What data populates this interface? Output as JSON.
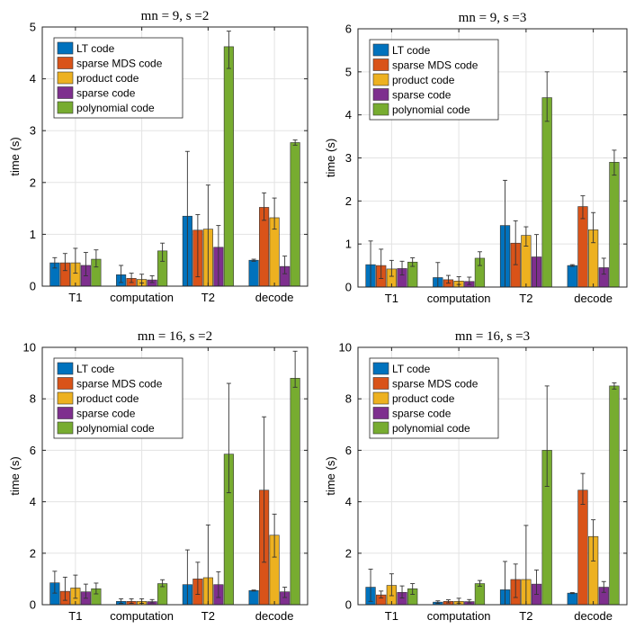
{
  "colors": {
    "LT code": "#0072BD",
    "sparse MDS code": "#D95319",
    "product code": "#EDB120",
    "sparse code": "#7E2F8E",
    "polynomial code": "#77AC30"
  },
  "chart_data": [
    {
      "type": "bar",
      "title": "mn = 9, s =2",
      "ylabel": "time (s)",
      "ylim": [
        0,
        5
      ],
      "yticks": [
        "0",
        "1",
        "2",
        "3",
        "4",
        "5"
      ],
      "grid": true,
      "legend_position": "top-left",
      "categories": [
        "T1",
        "computation",
        "T2",
        "decode"
      ],
      "series": [
        {
          "name": "LT code",
          "values": [
            0.45,
            0.22,
            1.35,
            0.5
          ],
          "err_low": [
            0.1,
            0.15,
            1.35,
            0.02
          ],
          "err_high": [
            0.1,
            0.18,
            1.25,
            0.02
          ]
        },
        {
          "name": "sparse MDS code",
          "values": [
            0.45,
            0.15,
            1.08,
            1.52
          ],
          "err_low": [
            0.15,
            0.08,
            0.9,
            0.25
          ],
          "err_high": [
            0.18,
            0.1,
            0.3,
            0.28
          ]
        },
        {
          "name": "product code",
          "values": [
            0.45,
            0.13,
            1.1,
            1.32
          ],
          "err_low": [
            0.2,
            0.07,
            1.1,
            0.22
          ],
          "err_high": [
            0.28,
            0.1,
            0.85,
            0.38
          ]
        },
        {
          "name": "sparse code",
          "values": [
            0.4,
            0.12,
            0.75,
            0.38
          ],
          "err_low": [
            0.2,
            0.05,
            0.75,
            0.14
          ],
          "err_high": [
            0.25,
            0.08,
            0.42,
            0.2
          ]
        },
        {
          "name": "polynomial code",
          "values": [
            0.52,
            0.68,
            4.62,
            2.77
          ],
          "err_low": [
            0.15,
            0.2,
            0.42,
            0.05
          ],
          "err_high": [
            0.18,
            0.15,
            0.3,
            0.05
          ]
        }
      ]
    },
    {
      "type": "bar",
      "title": "mn = 9, s =3",
      "ylabel": "time (s)",
      "ylim": [
        0,
        6
      ],
      "yticks": [
        "0",
        "1",
        "2",
        "3",
        "4",
        "5",
        "6"
      ],
      "grid": true,
      "legend_position": "top-left",
      "categories": [
        "T1",
        "computation",
        "T2",
        "decode"
      ],
      "series": [
        {
          "name": "LT code",
          "values": [
            0.52,
            0.22,
            1.43,
            0.5
          ],
          "err_low": [
            0.52,
            0.22,
            1.43,
            0.02
          ],
          "err_high": [
            0.55,
            0.35,
            1.05,
            0.02
          ]
        },
        {
          "name": "sparse MDS code",
          "values": [
            0.5,
            0.17,
            1.02,
            1.87
          ],
          "err_low": [
            0.3,
            0.08,
            0.5,
            0.28
          ],
          "err_high": [
            0.38,
            0.1,
            0.52,
            0.25
          ]
        },
        {
          "name": "product code",
          "values": [
            0.42,
            0.14,
            1.2,
            1.33
          ],
          "err_low": [
            0.17,
            0.08,
            0.25,
            0.3
          ],
          "err_high": [
            0.2,
            0.1,
            0.2,
            0.4
          ]
        },
        {
          "name": "sparse code",
          "values": [
            0.43,
            0.13,
            0.7,
            0.45
          ],
          "err_low": [
            0.15,
            0.07,
            0.7,
            0.15
          ],
          "err_high": [
            0.17,
            0.1,
            0.52,
            0.22
          ]
        },
        {
          "name": "polynomial code",
          "values": [
            0.58,
            0.67,
            4.4,
            2.9
          ],
          "err_low": [
            0.1,
            0.17,
            0.55,
            0.3
          ],
          "err_high": [
            0.1,
            0.15,
            0.6,
            0.28
          ]
        }
      ]
    },
    {
      "type": "bar",
      "title": "mn = 16, s =2",
      "ylabel": "time (s)",
      "ylim": [
        0,
        10
      ],
      "yticks": [
        "0",
        "2",
        "4",
        "6",
        "8",
        "10"
      ],
      "grid": true,
      "legend_position": "top-left",
      "categories": [
        "T1",
        "computation",
        "T2",
        "decode"
      ],
      "series": [
        {
          "name": "LT code",
          "values": [
            0.85,
            0.13,
            0.78,
            0.55
          ],
          "err_low": [
            0.4,
            0.08,
            0.78,
            0.02
          ],
          "err_high": [
            0.45,
            0.1,
            1.35,
            0.02
          ]
        },
        {
          "name": "sparse MDS code",
          "values": [
            0.52,
            0.13,
            1.0,
            4.45
          ],
          "err_low": [
            0.35,
            0.08,
            0.6,
            2.8
          ],
          "err_high": [
            0.55,
            0.1,
            0.65,
            2.85
          ]
        },
        {
          "name": "product code",
          "values": [
            0.65,
            0.13,
            1.05,
            2.7
          ],
          "err_low": [
            0.4,
            0.08,
            1.05,
            0.85
          ],
          "err_high": [
            0.5,
            0.1,
            2.05,
            0.82
          ]
        },
        {
          "name": "sparse code",
          "values": [
            0.5,
            0.12,
            0.78,
            0.5
          ],
          "err_low": [
            0.25,
            0.05,
            0.5,
            0.22
          ],
          "err_high": [
            0.3,
            0.08,
            0.5,
            0.18
          ]
        },
        {
          "name": "polynomial code",
          "values": [
            0.62,
            0.82,
            5.85,
            8.8
          ],
          "err_low": [
            0.2,
            0.12,
            1.5,
            0.35
          ],
          "err_high": [
            0.22,
            0.15,
            2.75,
            1.05
          ]
        }
      ]
    },
    {
      "type": "bar",
      "title": "mn = 16, s =3",
      "ylabel": "time (s)",
      "ylim": [
        0,
        10
      ],
      "yticks": [
        "0",
        "2",
        "4",
        "6",
        "8",
        "10"
      ],
      "grid": true,
      "legend_position": "top-left",
      "categories": [
        "T1",
        "computation",
        "T2",
        "decode"
      ],
      "series": [
        {
          "name": "LT code",
          "values": [
            0.68,
            0.1,
            0.58,
            0.45
          ],
          "err_low": [
            0.55,
            0.05,
            0.58,
            0.02
          ],
          "err_high": [
            0.7,
            0.05,
            1.1,
            0.02
          ]
        },
        {
          "name": "sparse MDS code",
          "values": [
            0.38,
            0.13,
            0.98,
            4.45
          ],
          "err_low": [
            0.12,
            0.06,
            0.7,
            0.55
          ],
          "err_high": [
            0.15,
            0.06,
            0.6,
            0.65
          ]
        },
        {
          "name": "product code",
          "values": [
            0.75,
            0.13,
            0.98,
            2.65
          ],
          "err_low": [
            0.4,
            0.07,
            0.98,
            0.95
          ],
          "err_high": [
            0.45,
            0.12,
            2.1,
            0.65
          ]
        },
        {
          "name": "sparse code",
          "values": [
            0.48,
            0.12,
            0.8,
            0.68
          ],
          "err_low": [
            0.22,
            0.05,
            0.4,
            0.2
          ],
          "err_high": [
            0.25,
            0.08,
            0.55,
            0.22
          ]
        },
        {
          "name": "polynomial code",
          "values": [
            0.62,
            0.82,
            6.0,
            8.5
          ],
          "err_low": [
            0.22,
            0.1,
            1.4,
            0.12
          ],
          "err_high": [
            0.2,
            0.12,
            2.5,
            0.12
          ]
        }
      ]
    }
  ]
}
